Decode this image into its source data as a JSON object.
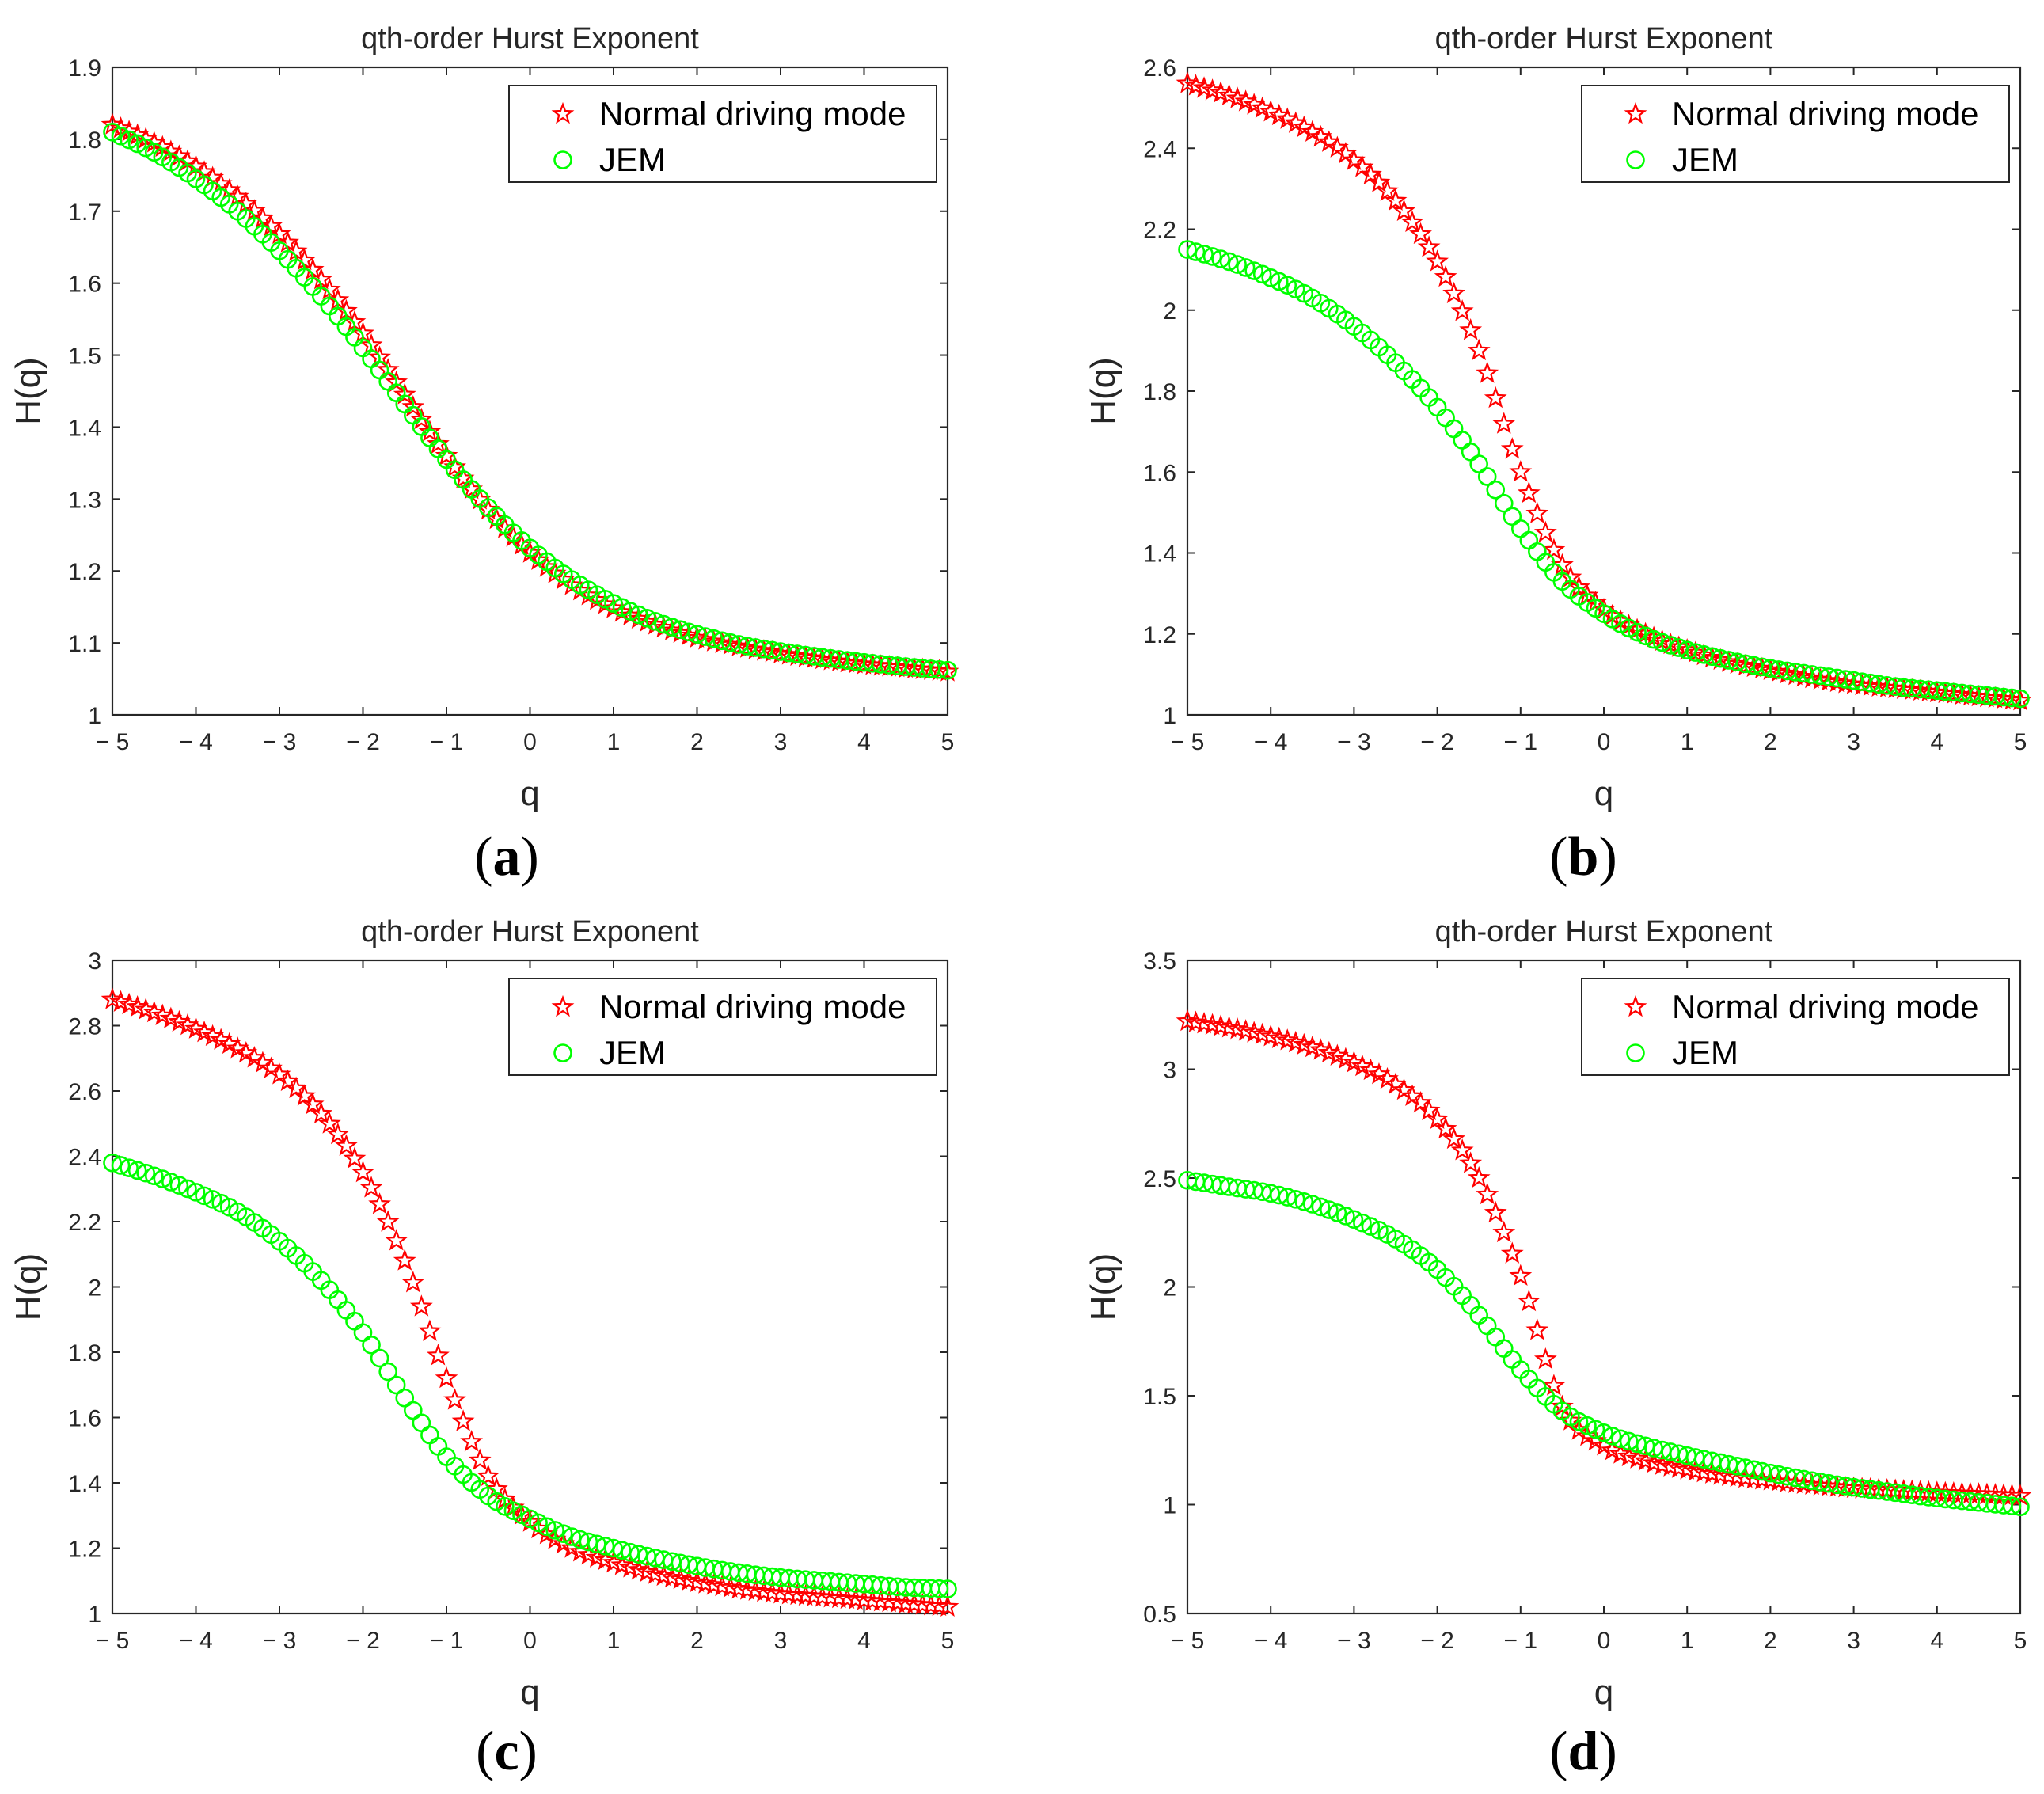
{
  "figure_captions": [
    "(a)",
    "(b)",
    "(c)",
    "(d)"
  ],
  "colors": {
    "series_star": "#ff0000",
    "series_circle": "#00ff00",
    "axes": "#262626"
  },
  "chart_data": [
    {
      "type": "scatter",
      "panel": "a",
      "caption_letter": "a",
      "title": "qth-order Hurst Exponent",
      "xlabel": "q",
      "ylabel": "H(q)",
      "xlim": [
        -5,
        5
      ],
      "ylim": [
        1,
        1.9
      ],
      "xticks": [
        -5,
        -4,
        -3,
        -2,
        -1,
        0,
        1,
        2,
        3,
        4,
        5
      ],
      "xtick_labels": [
        "− 5",
        "− 4",
        "− 3",
        "− 2",
        "− 1",
        "0",
        "1",
        "2",
        "3",
        "4",
        "5"
      ],
      "yticks": [
        1,
        1.1,
        1.2,
        1.3,
        1.4,
        1.5,
        1.6,
        1.7,
        1.8,
        1.9
      ],
      "ytick_labels": [
        "1",
        "1.1",
        "1.2",
        "1.3",
        "1.4",
        "1.5",
        "1.6",
        "1.7",
        "1.8",
        "1.9"
      ],
      "legend": {
        "location": "top-right",
        "entries": [
          "Normal driving mode",
          "JEM"
        ]
      },
      "series": [
        {
          "name": "Normal driving mode",
          "marker": "star",
          "color": "#ff0000",
          "x": [
            -5,
            -4.5,
            -4,
            -3.5,
            -3,
            -2.5,
            -2,
            -1.5,
            -1,
            -0.5,
            0,
            0.5,
            1,
            1.5,
            2,
            2.5,
            3,
            3.5,
            4,
            4.5,
            5
          ],
          "y": [
            1.82,
            1.795,
            1.762,
            1.72,
            1.668,
            1.605,
            1.53,
            1.445,
            1.36,
            1.285,
            1.225,
            1.18,
            1.148,
            1.125,
            1.107,
            1.095,
            1.085,
            1.077,
            1.07,
            1.065,
            1.06
          ]
        },
        {
          "name": "JEM",
          "marker": "circle",
          "color": "#00ff00",
          "x": [
            -5,
            -4.5,
            -4,
            -3.5,
            -3,
            -2.5,
            -2,
            -1.5,
            -1,
            -0.5,
            0,
            0.5,
            1,
            1.5,
            2,
            2.5,
            3,
            3.5,
            4,
            4.5,
            5
          ],
          "y": [
            1.81,
            1.782,
            1.745,
            1.7,
            1.645,
            1.582,
            1.51,
            1.432,
            1.355,
            1.288,
            1.232,
            1.188,
            1.155,
            1.13,
            1.112,
            1.098,
            1.088,
            1.08,
            1.073,
            1.067,
            1.062
          ]
        }
      ]
    },
    {
      "type": "scatter",
      "panel": "b",
      "caption_letter": "b",
      "title": "qth-order Hurst Exponent",
      "xlabel": "q",
      "ylabel": "H(q)",
      "xlim": [
        -5,
        5
      ],
      "ylim": [
        1,
        2.6
      ],
      "xticks": [
        -5,
        -4,
        -3,
        -2,
        -1,
        0,
        1,
        2,
        3,
        4,
        5
      ],
      "xtick_labels": [
        "− 5",
        "− 4",
        "− 3",
        "− 2",
        "− 1",
        "0",
        "1",
        "2",
        "3",
        "4",
        "5"
      ],
      "yticks": [
        1,
        1.2,
        1.4,
        1.6,
        1.8,
        2,
        2.2,
        2.4,
        2.6
      ],
      "ytick_labels": [
        "1",
        "1.2",
        "1.4",
        "1.6",
        "1.8",
        "2",
        "2.2",
        "2.4",
        "2.6"
      ],
      "legend": {
        "location": "top-right",
        "entries": [
          "Normal driving mode",
          "JEM"
        ]
      },
      "series": [
        {
          "name": "Normal driving mode",
          "marker": "star",
          "color": "#ff0000",
          "x": [
            -5,
            -4.5,
            -4,
            -3.5,
            -3,
            -2.5,
            -2,
            -1.5,
            -1,
            -0.5,
            0,
            0.5,
            1,
            1.5,
            2,
            2.5,
            3,
            3.5,
            4,
            4.5,
            5
          ],
          "y": [
            2.56,
            2.53,
            2.49,
            2.44,
            2.37,
            2.27,
            2.12,
            1.9,
            1.6,
            1.37,
            1.26,
            1.2,
            1.16,
            1.13,
            1.11,
            1.09,
            1.075,
            1.065,
            1.055,
            1.045,
            1.035
          ]
        },
        {
          "name": "JEM",
          "marker": "circle",
          "color": "#00ff00",
          "x": [
            -5,
            -4.5,
            -4,
            -3.5,
            -3,
            -2.5,
            -2,
            -1.5,
            -1,
            -0.5,
            0,
            0.5,
            1,
            1.5,
            2,
            2.5,
            3,
            3.5,
            4,
            4.5,
            5
          ],
          "y": [
            2.15,
            2.12,
            2.08,
            2.03,
            1.96,
            1.87,
            1.76,
            1.62,
            1.46,
            1.33,
            1.25,
            1.195,
            1.16,
            1.135,
            1.115,
            1.1,
            1.085,
            1.07,
            1.06,
            1.05,
            1.04
          ]
        }
      ]
    },
    {
      "type": "scatter",
      "panel": "c",
      "caption_letter": "c",
      "title": "qth-order Hurst Exponent",
      "xlabel": "q",
      "ylabel": "H(q)",
      "xlim": [
        -5,
        5
      ],
      "ylim": [
        1,
        3
      ],
      "xticks": [
        -5,
        -4,
        -3,
        -2,
        -1,
        0,
        1,
        2,
        3,
        4,
        5
      ],
      "xtick_labels": [
        "− 5",
        "− 4",
        "− 3",
        "− 2",
        "− 1",
        "0",
        "1",
        "2",
        "3",
        "4",
        "5"
      ],
      "yticks": [
        1,
        1.2,
        1.4,
        1.6,
        1.8,
        2,
        2.2,
        2.4,
        2.6,
        2.8,
        3
      ],
      "ytick_labels": [
        "1",
        "1.2",
        "1.4",
        "1.6",
        "1.8",
        "2",
        "2.2",
        "2.4",
        "2.6",
        "2.8",
        "3"
      ],
      "legend": {
        "location": "top-right",
        "entries": [
          "Normal driving mode",
          "JEM"
        ]
      },
      "series": [
        {
          "name": "Normal driving mode",
          "marker": "star",
          "color": "#ff0000",
          "x": [
            -5,
            -4.5,
            -4,
            -3.5,
            -3,
            -2.5,
            -2,
            -1.5,
            -1,
            -0.5,
            0,
            0.5,
            1,
            1.5,
            2,
            2.5,
            3,
            3.5,
            4,
            4.5,
            5
          ],
          "y": [
            2.88,
            2.84,
            2.79,
            2.73,
            2.65,
            2.53,
            2.35,
            2.08,
            1.72,
            1.42,
            1.28,
            1.2,
            1.155,
            1.12,
            1.095,
            1.075,
            1.06,
            1.05,
            1.04,
            1.03,
            1.02
          ]
        },
        {
          "name": "JEM",
          "marker": "circle",
          "color": "#00ff00",
          "x": [
            -5,
            -4.5,
            -4,
            -3.5,
            -3,
            -2.5,
            -2,
            -1.5,
            -1,
            -0.5,
            0,
            0.5,
            1,
            1.5,
            2,
            2.5,
            3,
            3.5,
            4,
            4.5,
            5
          ],
          "y": [
            2.38,
            2.34,
            2.29,
            2.23,
            2.14,
            2.02,
            1.86,
            1.66,
            1.48,
            1.36,
            1.29,
            1.235,
            1.2,
            1.17,
            1.145,
            1.125,
            1.11,
            1.1,
            1.09,
            1.08,
            1.075
          ]
        }
      ]
    },
    {
      "type": "scatter",
      "panel": "d",
      "caption_letter": "d",
      "title": "qth-order Hurst Exponent",
      "xlabel": "q",
      "ylabel": "H(q)",
      "xlim": [
        -5,
        5
      ],
      "ylim": [
        0.5,
        3.5
      ],
      "xticks": [
        -5,
        -4,
        -3,
        -2,
        -1,
        0,
        1,
        2,
        3,
        4,
        5
      ],
      "xtick_labels": [
        "− 5",
        "− 4",
        "− 3",
        "− 2",
        "− 1",
        "0",
        "1",
        "2",
        "3",
        "4",
        "5"
      ],
      "yticks": [
        0.5,
        1,
        1.5,
        2,
        2.5,
        3,
        3.5
      ],
      "ytick_labels": [
        "0.5",
        "1",
        "1.5",
        "2",
        "2.5",
        "3",
        "3.5"
      ],
      "legend": {
        "location": "top-right",
        "entries": [
          "Normal driving mode",
          "JEM"
        ]
      },
      "series": [
        {
          "name": "Normal driving mode",
          "marker": "star",
          "color": "#ff0000",
          "x": [
            -5,
            -4.5,
            -4,
            -3.5,
            -3,
            -2.5,
            -2,
            -1.5,
            -1,
            -0.5,
            0,
            0.5,
            1,
            1.5,
            2,
            2.5,
            3,
            3.5,
            4,
            4.5,
            5
          ],
          "y": [
            3.22,
            3.19,
            3.15,
            3.1,
            3.03,
            2.93,
            2.77,
            2.5,
            2.05,
            1.45,
            1.27,
            1.2,
            1.16,
            1.13,
            1.11,
            1.09,
            1.075,
            1.065,
            1.055,
            1.048,
            1.04
          ]
        },
        {
          "name": "JEM",
          "marker": "circle",
          "color": "#00ff00",
          "x": [
            -5,
            -4.5,
            -4,
            -3.5,
            -3,
            -2.5,
            -2,
            -1.5,
            -1,
            -0.5,
            0,
            0.5,
            1,
            1.5,
            2,
            2.5,
            3,
            3.5,
            4,
            4.5,
            5
          ],
          "y": [
            2.49,
            2.46,
            2.43,
            2.38,
            2.31,
            2.22,
            2.08,
            1.87,
            1.62,
            1.43,
            1.33,
            1.27,
            1.225,
            1.185,
            1.145,
            1.11,
            1.08,
            1.055,
            1.03,
            1.01,
            0.99
          ]
        }
      ]
    }
  ]
}
